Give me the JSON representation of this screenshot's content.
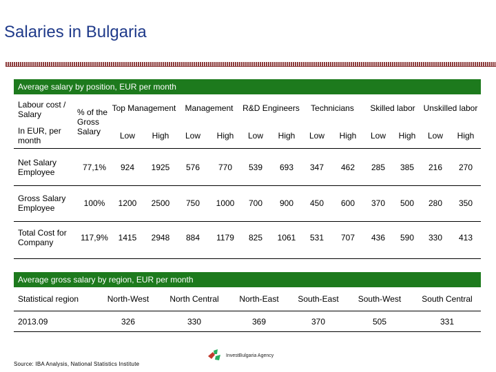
{
  "title": "Salaries in Bulgaria",
  "position_table": {
    "caption": "Average salary by position, EUR per month",
    "row_header_top": "Labour cost / Salary",
    "row_header_bottom": "In EUR, per month",
    "pct_header": "% of the Gross Salary",
    "groups": [
      "Top Management",
      "Management",
      "R&D Engineers",
      "Technicians",
      "Skilled labor",
      "Unskilled labor"
    ],
    "sub_low": "Low",
    "sub_high": "High",
    "rows": [
      {
        "label": "Net Salary Employee",
        "pct": "77,1%",
        "values": [
          "924",
          "1925",
          "576",
          "770",
          "539",
          "693",
          "347",
          "462",
          "285",
          "385",
          "216",
          "270"
        ]
      },
      {
        "label": "Gross Salary Employee",
        "pct": "100%",
        "values": [
          "1200",
          "2500",
          "750",
          "1000",
          "700",
          "900",
          "450",
          "600",
          "370",
          "500",
          "280",
          "350"
        ]
      },
      {
        "label": "Total Cost for Company",
        "pct": "117,9%",
        "values": [
          "1415",
          "2948",
          "884",
          "1179",
          "825",
          "1061",
          "531",
          "707",
          "436",
          "590",
          "330",
          "413"
        ]
      }
    ]
  },
  "region_table": {
    "caption": "Average gross salary by region, EUR per month",
    "header_label": "Statistical region",
    "regions": [
      "North-West",
      "North Central",
      "North-East",
      "South-East",
      "South-West",
      "South Central"
    ],
    "row_label": "2013.09",
    "values": [
      "326",
      "330",
      "369",
      "370",
      "505",
      "331"
    ]
  },
  "source": "Source: IBA Analysis, National Statistics Institute",
  "logo_text": "InvestBulgaria Agency",
  "colors": {
    "section_bar": "#1d7a1d",
    "title": "#1f3a8a",
    "rule": "#8b3a3a"
  }
}
